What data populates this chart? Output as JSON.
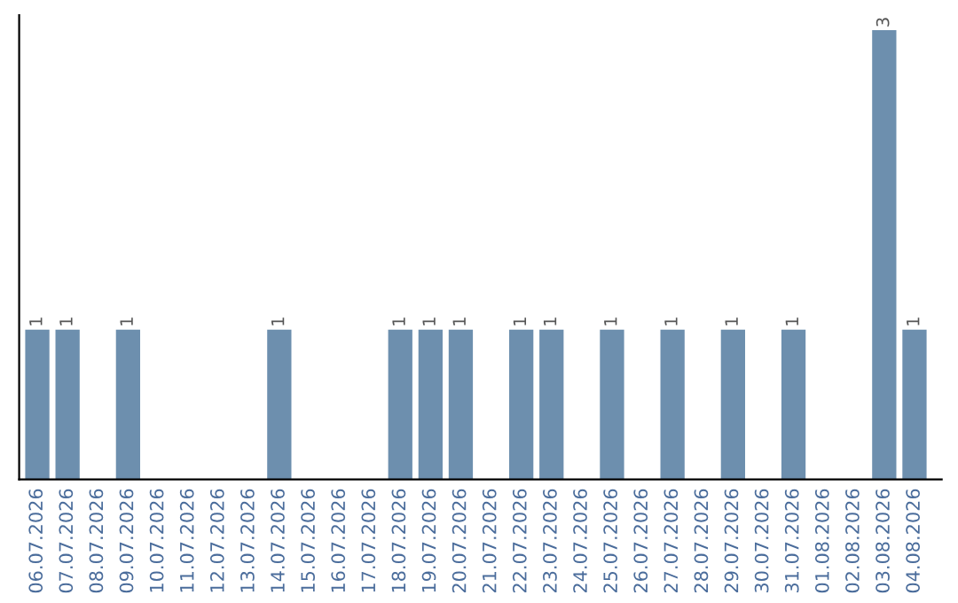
{
  "chart_data": {
    "type": "bar",
    "categories": [
      "06.07.2026",
      "07.07.2026",
      "08.07.2026",
      "09.07.2026",
      "10.07.2026",
      "11.07.2026",
      "12.07.2026",
      "13.07.2026",
      "14.07.2026",
      "15.07.2026",
      "16.07.2026",
      "17.07.2026",
      "18.07.2026",
      "19.07.2026",
      "20.07.2026",
      "21.07.2026",
      "22.07.2026",
      "23.07.2026",
      "24.07.2026",
      "25.07.2026",
      "26.07.2026",
      "27.07.2026",
      "28.07.2026",
      "29.07.2026",
      "30.07.2026",
      "31.07.2026",
      "01.08.2026",
      "02.08.2026",
      "03.08.2026",
      "04.08.2026"
    ],
    "values": [
      1,
      1,
      0,
      1,
      0,
      0,
      0,
      0,
      1,
      0,
      0,
      0,
      1,
      1,
      1,
      0,
      1,
      1,
      0,
      1,
      0,
      1,
      0,
      1,
      0,
      1,
      0,
      0,
      3,
      1
    ],
    "value_labels": [
      "1",
      "1",
      null,
      "1",
      null,
      null,
      null,
      null,
      "1",
      null,
      null,
      null,
      "1",
      "1",
      "1",
      null,
      "1",
      "1",
      null,
      "1",
      null,
      "1",
      null,
      "1",
      null,
      "1",
      null,
      null,
      "3",
      "1"
    ],
    "color": "#6d8fae",
    "ylim": [
      0,
      3.1
    ],
    "tick_labels": "x",
    "grid": false
  }
}
